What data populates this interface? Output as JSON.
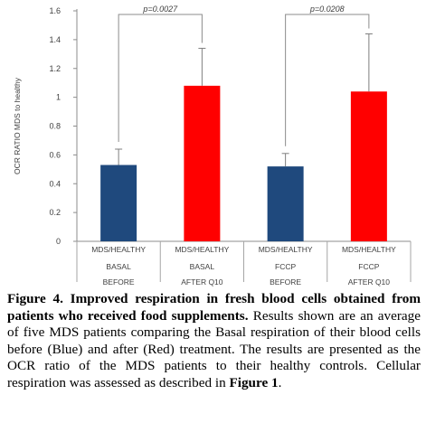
{
  "chart_data": {
    "type": "bar",
    "ylabel": "OCR RATIO MDS to healthy",
    "ylim": [
      0,
      1.6
    ],
    "yticks": [
      "0",
      "0.2",
      "0.4",
      "0.6",
      "0.8",
      "1",
      "1.2",
      "1.4",
      "1.6"
    ],
    "grid": false,
    "categories": [
      {
        "line1": "MDS/HEALTHY",
        "line2": "BASAL",
        "line3": "BEFORE"
      },
      {
        "line1": "MDS/HEALTHY",
        "line2": "BASAL",
        "line3": "AFTER Q10"
      },
      {
        "line1": "MDS/HEALTHY",
        "line2": "FCCP",
        "line3": "BEFORE"
      },
      {
        "line1": "MDS/HEALTHY",
        "line2": "FCCP",
        "line3": "AFTER Q10"
      }
    ],
    "values": [
      0.53,
      1.08,
      0.52,
      1.04
    ],
    "errors": [
      0.11,
      0.26,
      0.09,
      0.4
    ],
    "colors": [
      "#1f497d",
      "#ff0000",
      "#1f497d",
      "#ff0000"
    ],
    "annotations": [
      {
        "text": "p=0.0027",
        "from": 0,
        "to": 1
      },
      {
        "text": "p=0.0208",
        "from": 2,
        "to": 3
      }
    ]
  },
  "caption": {
    "bold": "Figure 4. Improved respiration in fresh blood cells obtained from patients who received food supplements.",
    "body": " Results shown are an average of five MDS patients comparing the Basal respiration of their blood cells before (Blue) and after (Red) treatment. The results are presented as the OCR ratio of the MDS patients to their healthy controls. Cellular respiration was assessed as described in ",
    "ref": "Figure 1",
    "end": "."
  }
}
